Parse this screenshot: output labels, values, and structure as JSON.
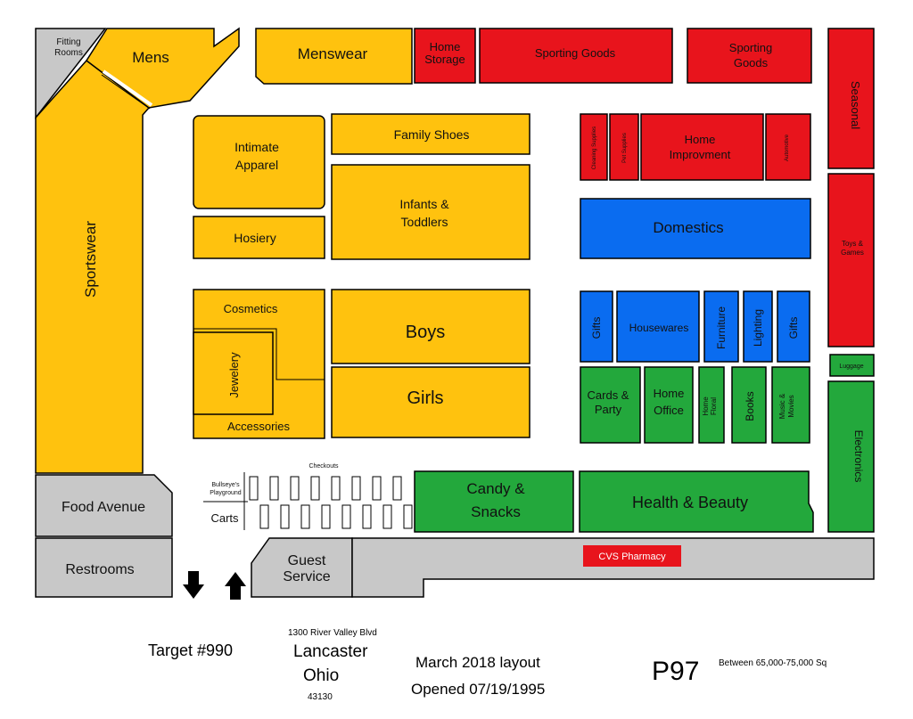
{
  "colors": {
    "yellow": "#FFC20E",
    "red": "#E8141C",
    "blue": "#0A6CF0",
    "green": "#23A83C",
    "gray": "#C8C8C8",
    "outline": "#000000"
  },
  "departments": {
    "fitting_rooms": "Fitting Rooms",
    "mens": "Mens",
    "menswear": "Menswear",
    "home_storage": "Home Storage",
    "sporting_goods": "Sporting Goods",
    "sporting_goods_2": "Sporting Goods",
    "seasonal": "Seasonal",
    "intimate_apparel": "Intimate Apparel",
    "family_shoes": "Family Shoes",
    "hosiery": "Hosiery",
    "infants_toddlers": "Infants & Toddlers",
    "cleaning_supplies": "Cleaning Supplies",
    "pet_supplies": "Pet Supplies",
    "home_improvement": "Home Improvment",
    "automotive": "Automotive",
    "domestics": "Domestics",
    "toys_games": "Toys & Games",
    "sportswear": "Sportswear",
    "cosmetics": "Cosmetics",
    "jewelery": "Jewelery",
    "accessories": "Accessories",
    "boys": "Boys",
    "girls": "Girls",
    "gifts": "Gifts",
    "housewares": "Housewares",
    "furniture": "Furniture",
    "lighting": "Lighting",
    "gifts_2": "Gifts",
    "luggage": "Luggage",
    "cards_party": "Cards & Party",
    "home_office": "Home Office",
    "home_floral": "Home Floral",
    "books": "Books",
    "music_movies": "Music & Movies",
    "electronics": "Electronics",
    "food_avenue": "Food Avenue",
    "restrooms": "Restrooms",
    "checkouts": "Checkouts",
    "bullseye_playground": "Bullseye's Playground",
    "carts": "Carts",
    "candy_snacks": "Candy & Snacks",
    "health_beauty": "Health & Beauty",
    "guest_service": "Guest Service",
    "cvs_pharmacy": "CVS Pharmacy"
  },
  "store_info": {
    "target_number": "Target #990",
    "address": "1300 River Valley Blvd",
    "city": "Lancaster",
    "state": "Ohio",
    "zip": "43130",
    "layout_date": "March 2018 layout",
    "opened": "Opened 07/19/1995",
    "prototype": "P97",
    "square_footage": "Between 65,000-75,000 Sq"
  }
}
